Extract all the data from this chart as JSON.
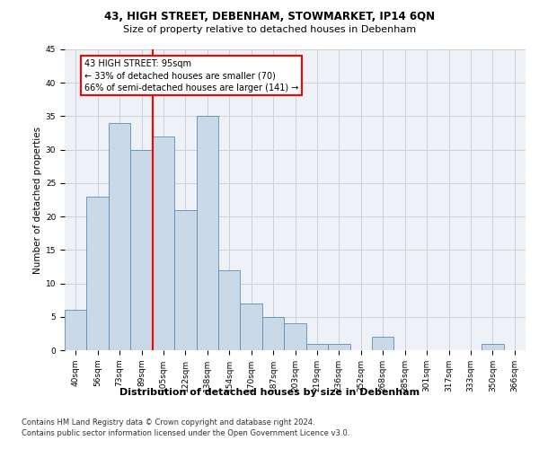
{
  "title1": "43, HIGH STREET, DEBENHAM, STOWMARKET, IP14 6QN",
  "title2": "Size of property relative to detached houses in Debenham",
  "xlabel": "Distribution of detached houses by size in Debenham",
  "ylabel": "Number of detached properties",
  "footnote1": "Contains HM Land Registry data © Crown copyright and database right 2024.",
  "footnote2": "Contains public sector information licensed under the Open Government Licence v3.0.",
  "categories": [
    "40sqm",
    "56sqm",
    "73sqm",
    "89sqm",
    "105sqm",
    "122sqm",
    "138sqm",
    "154sqm",
    "170sqm",
    "187sqm",
    "203sqm",
    "219sqm",
    "236sqm",
    "252sqm",
    "268sqm",
    "285sqm",
    "301sqm",
    "317sqm",
    "333sqm",
    "350sqm",
    "366sqm"
  ],
  "values": [
    6,
    23,
    34,
    30,
    32,
    21,
    35,
    12,
    7,
    5,
    4,
    1,
    1,
    0,
    2,
    0,
    0,
    0,
    0,
    1,
    0
  ],
  "bar_color": "#c9d9e8",
  "bar_edge_color": "#5b8db8",
  "vline_x": 3.5,
  "vline_color": "red",
  "annotation_line1": "43 HIGH STREET: 95sqm",
  "annotation_line2": "← 33% of detached houses are smaller (70)",
  "annotation_line3": "66% of semi-detached houses are larger (141) →",
  "annotation_box_color": "white",
  "annotation_box_edge_color": "red",
  "ylim": [
    0,
    45
  ],
  "yticks": [
    0,
    5,
    10,
    15,
    20,
    25,
    30,
    35,
    40,
    45
  ],
  "background_color": "#eef2f7",
  "grid_color": "#c8d0da",
  "title1_fontsize": 8.5,
  "title2_fontsize": 8.0,
  "ylabel_fontsize": 7.5,
  "xlabel_fontsize": 8.0,
  "tick_fontsize": 6.5,
  "footnote_fontsize": 6.0,
  "annot_fontsize": 7.0
}
